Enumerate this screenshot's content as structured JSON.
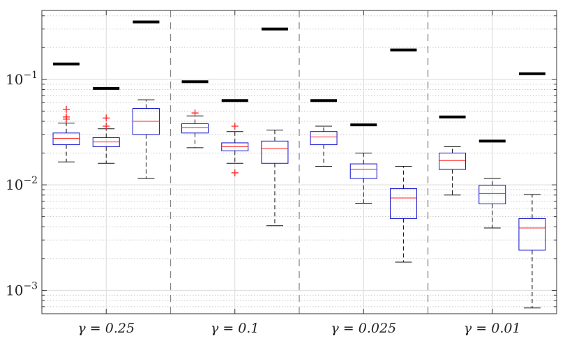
{
  "chart_data": {
    "type": "boxplot",
    "title": "",
    "xlabel": "",
    "ylabel": "",
    "yscale": "log",
    "ylim": [
      0.0006,
      0.45
    ],
    "y_ticks": [
      {
        "value": 0.001,
        "base": "10",
        "exp": "−3"
      },
      {
        "value": 0.01,
        "base": "10",
        "exp": "−2"
      },
      {
        "value": 0.1,
        "base": "10",
        "exp": "−1"
      }
    ],
    "categories": [
      "γ = 0.25",
      "γ = 0.1",
      "γ = 0.025",
      "γ = 0.01"
    ],
    "boxes_per_group": 3,
    "colors": {
      "box": "#1010cc",
      "median": "#ff2020",
      "whisker": "#111111",
      "outlier": "#ff2020",
      "reference": "#000000",
      "separator": "#888888",
      "grid": "#d9d9d9"
    },
    "groups": [
      {
        "label": "γ = 0.25",
        "boxes": [
          {
            "whisker_low": 0.0165,
            "q1": 0.024,
            "median": 0.0275,
            "q3": 0.031,
            "whisker_high": 0.0385,
            "outliers": [
              0.042,
              0.044,
              0.052
            ],
            "reference": 0.14
          },
          {
            "whisker_low": 0.016,
            "q1": 0.023,
            "median": 0.0255,
            "q3": 0.028,
            "whisker_high": 0.034,
            "outliers": [
              0.036,
              0.043
            ],
            "reference": 0.082
          },
          {
            "whisker_low": 0.0115,
            "q1": 0.03,
            "median": 0.04,
            "q3": 0.053,
            "whisker_high": 0.064,
            "outliers": [],
            "reference": 0.35
          }
        ]
      },
      {
        "label": "γ = 0.1",
        "boxes": [
          {
            "whisker_low": 0.0225,
            "q1": 0.031,
            "median": 0.035,
            "q3": 0.038,
            "whisker_high": 0.045,
            "outliers": [
              0.048
            ],
            "reference": 0.095
          },
          {
            "whisker_low": 0.016,
            "q1": 0.021,
            "median": 0.023,
            "q3": 0.025,
            "whisker_high": 0.032,
            "outliers": [
              0.013,
              0.036
            ],
            "reference": 0.063
          },
          {
            "whisker_low": 0.0041,
            "q1": 0.016,
            "median": 0.022,
            "q3": 0.026,
            "whisker_high": 0.033,
            "outliers": [],
            "reference": 0.3
          }
        ]
      },
      {
        "label": "γ = 0.025",
        "boxes": [
          {
            "whisker_low": 0.015,
            "q1": 0.024,
            "median": 0.0285,
            "q3": 0.032,
            "whisker_high": 0.036,
            "outliers": [],
            "reference": 0.063
          },
          {
            "whisker_low": 0.0067,
            "q1": 0.0115,
            "median": 0.014,
            "q3": 0.0158,
            "whisker_high": 0.02,
            "outliers": [],
            "reference": 0.037
          },
          {
            "whisker_low": 0.00185,
            "q1": 0.0048,
            "median": 0.0075,
            "q3": 0.0092,
            "whisker_high": 0.015,
            "outliers": [],
            "reference": 0.19
          }
        ]
      },
      {
        "label": "γ = 0.01",
        "boxes": [
          {
            "whisker_low": 0.008,
            "q1": 0.014,
            "median": 0.017,
            "q3": 0.02,
            "whisker_high": 0.023,
            "outliers": [],
            "reference": 0.044
          },
          {
            "whisker_low": 0.0039,
            "q1": 0.0066,
            "median": 0.0083,
            "q3": 0.0099,
            "whisker_high": 0.0115,
            "outliers": [],
            "reference": 0.026
          },
          {
            "whisker_low": 0.00068,
            "q1": 0.0024,
            "median": 0.0039,
            "q3": 0.0048,
            "whisker_high": 0.0081,
            "outliers": [],
            "reference": 0.113
          }
        ]
      }
    ]
  }
}
